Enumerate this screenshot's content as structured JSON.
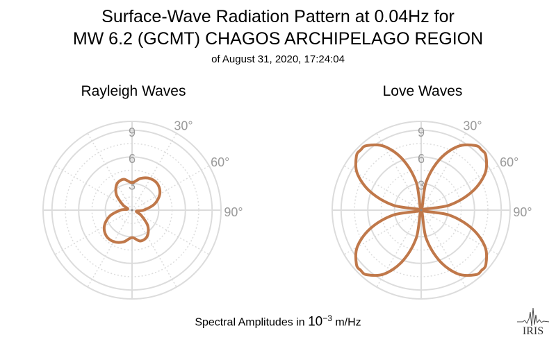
{
  "title": {
    "line1": "Surface-Wave Radiation Pattern at 0.04Hz for",
    "line2": "MW 6.2 (GCMT) CHAGOS ARCHIPELAGO REGION",
    "line3": "of August 31, 2020, 17:24:04"
  },
  "footer": {
    "prefix": "Spectral Amplitudes in ",
    "base": "10",
    "exponent": "−3",
    "unit": " m/Hz"
  },
  "logo_text": "IRIS",
  "colors": {
    "curve": "#c0784a",
    "grid": "#dcdcdc",
    "labels": "#9a9a9a"
  },
  "chart_data": [
    {
      "type": "polar",
      "title": "Rayleigh Waves",
      "radial_ticks": [
        "3",
        "6",
        "9"
      ],
      "radial_max": 10,
      "angle_labels": [
        "30°",
        "60°",
        "90°"
      ],
      "theta_deg": [
        0,
        15,
        30,
        45,
        60,
        75,
        90,
        105,
        120,
        135,
        150,
        165,
        180,
        195,
        210,
        225,
        240,
        255,
        270,
        285,
        300,
        315,
        330,
        345
      ],
      "r": [
        3.1,
        3.7,
        4.1,
        4.1,
        3.6,
        2.6,
        1.3,
        0.5,
        1.2,
        2.5,
        3.4,
        3.6,
        3.1,
        3.7,
        4.1,
        4.1,
        3.6,
        2.6,
        1.3,
        0.5,
        1.2,
        2.5,
        3.4,
        3.6
      ]
    },
    {
      "type": "polar",
      "title": "Love Waves",
      "radial_ticks": [
        "3",
        "6",
        "9"
      ],
      "radial_max": 10,
      "angle_labels": [
        "30°",
        "60°",
        "90°"
      ],
      "theta_deg": [
        0,
        10,
        20,
        30,
        40,
        45,
        50,
        60,
        70,
        80,
        90,
        100,
        110,
        120,
        130,
        135,
        140,
        150,
        160,
        170,
        180,
        190,
        200,
        210,
        220,
        225,
        230,
        240,
        250,
        260,
        270,
        280,
        290,
        300,
        310,
        315,
        320,
        330,
        340,
        350
      ],
      "r": [
        0.0,
        3.2,
        6.1,
        8.3,
        9.5,
        9.6,
        9.5,
        8.3,
        6.1,
        3.2,
        0.0,
        3.2,
        6.1,
        8.3,
        9.5,
        9.6,
        9.5,
        8.3,
        6.1,
        3.2,
        0.0,
        3.2,
        6.1,
        8.3,
        9.5,
        9.6,
        9.5,
        8.3,
        6.1,
        3.2,
        0.0,
        3.2,
        6.1,
        8.3,
        9.5,
        9.6,
        9.5,
        8.3,
        6.1,
        3.2
      ]
    }
  ]
}
